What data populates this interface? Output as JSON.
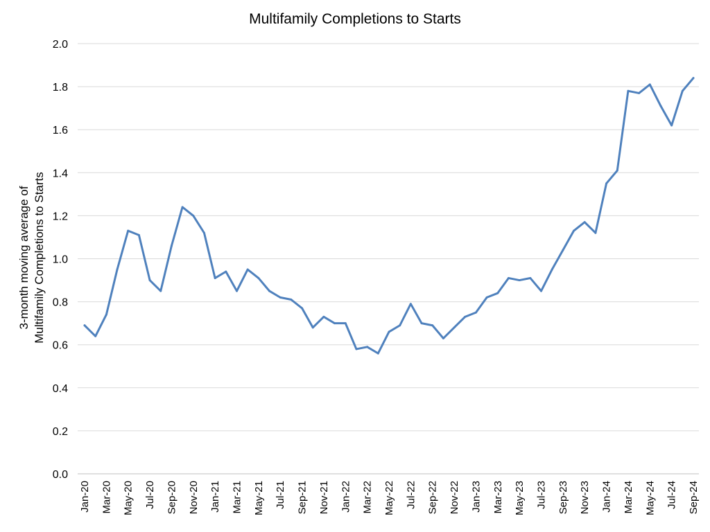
{
  "chart_data": {
    "type": "line",
    "title": "Multifamily Completions to Starts",
    "ylabel_lines": [
      "3-month moving average of",
      "Multifamily Completions to Starts"
    ],
    "xlabel": "",
    "ylim": [
      0,
      2.0
    ],
    "yticks": [
      "0.0",
      "0.2",
      "0.4",
      "0.6",
      "0.8",
      "1.0",
      "1.2",
      "1.4",
      "1.6",
      "1.8",
      "2.0"
    ],
    "grid": true,
    "legend": "none",
    "x_tick_labels": [
      "Jan-20",
      "Mar-20",
      "May-20",
      "Jul-20",
      "Sep-20",
      "Nov-20",
      "Jan-21",
      "Mar-21",
      "May-21",
      "Jul-21",
      "Sep-21",
      "Nov-21",
      "Jan-22",
      "Mar-22",
      "May-22",
      "Jul-22",
      "Sep-22",
      "Nov-22",
      "Jan-23",
      "Mar-23",
      "May-23",
      "Jul-23",
      "Sep-23",
      "Nov-23",
      "Jan-24",
      "Mar-24",
      "May-24",
      "Jul-24",
      "Sep-24"
    ],
    "series": [
      {
        "color": "#4f81bd",
        "x": [
          "Jan-20",
          "Feb-20",
          "Mar-20",
          "Apr-20",
          "May-20",
          "Jun-20",
          "Jul-20",
          "Aug-20",
          "Sep-20",
          "Oct-20",
          "Nov-20",
          "Dec-20",
          "Jan-21",
          "Feb-21",
          "Mar-21",
          "Apr-21",
          "May-21",
          "Jun-21",
          "Jul-21",
          "Aug-21",
          "Sep-21",
          "Oct-21",
          "Nov-21",
          "Dec-21",
          "Jan-22",
          "Feb-22",
          "Mar-22",
          "Apr-22",
          "May-22",
          "Jun-22",
          "Jul-22",
          "Aug-22",
          "Sep-22",
          "Oct-22",
          "Nov-22",
          "Dec-22",
          "Jan-23",
          "Feb-23",
          "Mar-23",
          "Apr-23",
          "May-23",
          "Jun-23",
          "Jul-23",
          "Aug-23",
          "Sep-23",
          "Oct-23",
          "Nov-23",
          "Dec-23",
          "Jan-24",
          "Feb-24",
          "Mar-24",
          "Apr-24",
          "May-24",
          "Jun-24",
          "Jul-24",
          "Aug-24",
          "Sep-24"
        ],
        "values": [
          0.69,
          0.64,
          0.74,
          0.95,
          1.13,
          1.11,
          0.9,
          0.85,
          1.06,
          1.24,
          1.2,
          1.12,
          0.91,
          0.94,
          0.85,
          0.95,
          0.91,
          0.85,
          0.82,
          0.81,
          0.77,
          0.68,
          0.73,
          0.7,
          0.7,
          0.58,
          0.59,
          0.56,
          0.66,
          0.69,
          0.79,
          0.7,
          0.69,
          0.63,
          0.68,
          0.73,
          0.75,
          0.82,
          0.84,
          0.91,
          0.9,
          0.91,
          0.85,
          0.95,
          1.04,
          1.13,
          1.17,
          1.12,
          1.35,
          1.41,
          1.78,
          1.77,
          1.81,
          1.71,
          1.62,
          1.78,
          1.84
        ]
      }
    ]
  }
}
